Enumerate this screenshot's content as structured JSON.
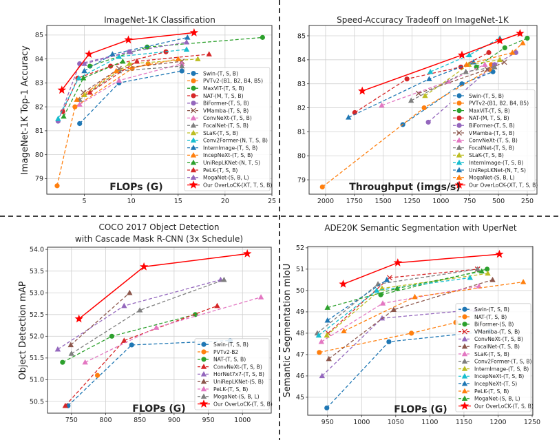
{
  "chart_data": [
    {
      "type": "line",
      "title": [
        "ImageNet-1K Classification"
      ],
      "xlabel": "FLOPs (G)",
      "ylabel": "ImageNet-1K Top-1 Accuracy",
      "xlim": [
        1.0,
        25.0
      ],
      "ylim": [
        78.35,
        85.4
      ],
      "x_reversed": false,
      "xticks": [
        5,
        10,
        15,
        20,
        25
      ],
      "yticks": [
        79,
        80,
        81,
        82,
        83,
        84,
        85
      ],
      "grid": true,
      "legend": "lower right",
      "series": [
        {
          "name": "Swin-(T, S, B)",
          "color": "#1f77b4",
          "marker": "circle",
          "x": [
            4.5,
            8.7,
            15.4
          ],
          "y": [
            81.3,
            83.0,
            83.5
          ]
        },
        {
          "name": "PVTv2-(B1, B2, B4, B5)",
          "color": "#ff7f0e",
          "marker": "circle",
          "x": [
            2.1,
            4.0,
            10.1,
            11.8
          ],
          "y": [
            78.7,
            82.0,
            83.6,
            83.8
          ]
        },
        {
          "name": "MaxViT-(T, S, B)",
          "color": "#2ca02c",
          "marker": "circle",
          "x": [
            5.6,
            11.7,
            24.0
          ],
          "y": [
            83.7,
            84.5,
            84.9
          ]
        },
        {
          "name": "NAT-(M, T, S, B)",
          "color": "#d62728",
          "marker": "circle",
          "x": [
            2.7,
            4.3,
            7.8,
            13.7
          ],
          "y": [
            81.8,
            83.2,
            83.7,
            84.3
          ]
        },
        {
          "name": "BiFormer-(T, S, B)",
          "color": "#9467bd",
          "marker": "circle",
          "x": [
            2.2,
            4.5,
            9.8
          ],
          "y": [
            81.4,
            83.8,
            84.3
          ]
        },
        {
          "name": "VMamba-(T, S, B)",
          "color": "#8c564b",
          "marker": "x",
          "x": [
            4.9,
            8.7,
            15.4
          ],
          "y": [
            82.6,
            83.6,
            83.9
          ]
        },
        {
          "name": "ConvNeXt-(T, S, B)",
          "color": "#e377c2",
          "marker": "triangle",
          "x": [
            4.5,
            8.7,
            15.4
          ],
          "y": [
            82.1,
            83.1,
            83.8
          ]
        },
        {
          "name": "FocalNet-(T, S, B)",
          "color": "#7f7f7f",
          "marker": "triangle",
          "x": [
            4.5,
            8.7,
            15.4
          ],
          "y": [
            82.3,
            83.5,
            83.7
          ]
        },
        {
          "name": "SLaK-(T, S, B)",
          "color": "#bcbd22",
          "marker": "triangle",
          "x": [
            5.0,
            9.8,
            17.1
          ],
          "y": [
            82.5,
            83.8,
            84.0
          ]
        },
        {
          "name": "Conv2Former-(N, T, S, B)",
          "color": "#17becf",
          "marker": "triangle",
          "x": [
            2.2,
            4.4,
            8.7,
            15.9
          ],
          "y": [
            81.5,
            83.2,
            84.1,
            84.4
          ]
        },
        {
          "name": "InternImage-(T, S, B)",
          "color": "#1f77b4",
          "marker": "triangle",
          "x": [
            5.0,
            8.0,
            16.0
          ],
          "y": [
            83.5,
            84.2,
            84.9
          ]
        },
        {
          "name": "IncepNeXt-(T, S, B)",
          "color": "#ff7f0e",
          "marker": "triangle",
          "x": [
            4.2,
            8.4,
            15.0
          ],
          "y": [
            82.3,
            83.5,
            84.0
          ]
        },
        {
          "name": "UniRepLKNet-(N, T, S)",
          "color": "#2ca02c",
          "marker": "triangle",
          "x": [
            2.8,
            4.9,
            9.1
          ],
          "y": [
            81.6,
            83.2,
            83.9
          ]
        },
        {
          "name": "PeLK-(T, S, B)",
          "color": "#d62728",
          "marker": "triangle",
          "x": [
            5.6,
            10.6,
            18.3
          ],
          "y": [
            82.6,
            83.9,
            84.2
          ]
        },
        {
          "name": "MogaNet-(S, B, L)",
          "color": "#9467bd",
          "marker": "triangle",
          "x": [
            5.0,
            9.9,
            15.9
          ],
          "y": [
            83.8,
            84.3,
            84.7
          ]
        },
        {
          "name": "Our OverLoCK-(XT, T, S, B)",
          "color": "#ff0000",
          "marker": "star",
          "solid": true,
          "x": [
            2.6,
            5.5,
            9.7,
            16.7
          ],
          "y": [
            82.7,
            84.2,
            84.8,
            85.1
          ]
        }
      ]
    },
    {
      "type": "line",
      "title": [
        "Speed-Accuracy Tradeoff on ImageNet-1K"
      ],
      "xlabel": "Throughput (imgs/s)",
      "ylabel": "",
      "xlim": [
        2143,
        166
      ],
      "ylim": [
        78.4,
        85.43
      ],
      "x_reversed": true,
      "xticks": [
        2000,
        1750,
        1500,
        1250,
        1000,
        750,
        500,
        250
      ],
      "yticks": [
        79,
        80,
        81,
        82,
        83,
        84,
        85
      ],
      "grid": true,
      "legend": "lower right",
      "series": [
        {
          "name": "Swin-(T, S, B)",
          "color": "#1f77b4",
          "marker": "circle",
          "x": [
            1330,
            817,
            548
          ],
          "y": [
            81.3,
            83.0,
            83.5
          ]
        },
        {
          "name": "PVTv2-(B1, B2, B4, B5)",
          "color": "#ff7f0e",
          "marker": "circle",
          "x": [
            2028,
            1145,
            578,
            562
          ],
          "y": [
            78.7,
            82.0,
            83.6,
            83.8
          ]
        },
        {
          "name": "MaxViT-(T, S, B)",
          "color": "#2ca02c",
          "marker": "circle",
          "x": [
            691,
            445,
            250
          ],
          "y": [
            83.7,
            84.5,
            84.9
          ]
        },
        {
          "name": "NAT-(M, T, S, B)",
          "color": "#d62728",
          "marker": "circle",
          "x": [
            1747,
            1294,
            826,
            584
          ],
          "y": [
            81.8,
            83.2,
            83.7,
            84.3
          ]
        },
        {
          "name": "BiFormer-(T, S, B)",
          "color": "#9467bd",
          "marker": "circle",
          "x": [
            1109,
            534,
            349
          ],
          "y": [
            81.4,
            83.8,
            84.3
          ]
        },
        {
          "name": "VMamba-(T, S, B)",
          "color": "#8c564b",
          "marker": "x",
          "x": [
            1194,
            598,
            449
          ],
          "y": [
            82.6,
            83.6,
            83.9
          ]
        },
        {
          "name": "ConvNeXt-(T, S, B)",
          "color": "#e377c2",
          "marker": "triangle",
          "x": [
            1513,
            936,
            618
          ],
          "y": [
            82.1,
            83.1,
            83.8
          ]
        },
        {
          "name": "FocalNet-(T, S, B)",
          "color": "#7f7f7f",
          "marker": "triangle",
          "x": [
            1258,
            783,
            534
          ],
          "y": [
            82.3,
            83.5,
            83.7
          ]
        },
        {
          "name": "SLaK-(T, S, B)",
          "color": "#bcbd22",
          "marker": "triangle",
          "x": [
            1137,
            757,
            488
          ],
          "y": [
            82.5,
            83.8,
            84.0
          ]
        },
        {
          "name": "InternImage-(T, S, B)",
          "color": "#17becf",
          "marker": "triangle",
          "x": [
            1091,
            753,
            488
          ],
          "y": [
            83.5,
            84.2,
            84.9
          ]
        },
        {
          "name": "UniRepLKNet-(N, T, S)",
          "color": "#1f77b4",
          "marker": "triangle",
          "x": [
            1801,
            1101,
            717
          ],
          "y": [
            81.6,
            83.2,
            83.9
          ]
        },
        {
          "name": "MogaNet-(S, B, L)",
          "color": "#ff7f0e",
          "marker": "triangle",
          "x": [
            777,
            379,
            289
          ],
          "y": [
            83.8,
            84.3,
            84.7
          ]
        },
        {
          "name": "Our OverLoCK-(XT, T, S, B)",
          "color": "#ff0000",
          "marker": "star",
          "solid": true,
          "x": [
            1682,
            817,
            488,
            313
          ],
          "y": [
            82.7,
            84.2,
            84.8,
            85.1
          ]
        }
      ]
    },
    {
      "type": "line",
      "title": [
        "COCO 2017 Object Detection",
        "with Cascade Mask R-CNN (3x Schedule)"
      ],
      "xlabel": "FLOPs (G)",
      "ylabel": "Object Detection mAP",
      "xlim": [
        715,
        1042
      ],
      "ylim": [
        50.23,
        54.05
      ],
      "x_reversed": false,
      "xticks": [
        750,
        800,
        850,
        900,
        950,
        1000
      ],
      "yticks": [
        50.5,
        51.0,
        51.5,
        52.0,
        52.5,
        53.0,
        53.5,
        54.0
      ],
      "grid": true,
      "legend": "lower right",
      "series": [
        {
          "name": "Swin-(T, S, B)",
          "color": "#1f77b4",
          "marker": "circle",
          "x": [
            745,
            838,
            982
          ],
          "y": [
            50.4,
            51.8,
            51.9
          ]
        },
        {
          "name": "PVTv2-B2",
          "color": "#ff7f0e",
          "marker": "circle",
          "x": [
            788
          ],
          "y": [
            51.1
          ]
        },
        {
          "name": "NAT-(T, S, B)",
          "color": "#2ca02c",
          "marker": "circle",
          "x": [
            737,
            809,
            931
          ],
          "y": [
            51.4,
            52.0,
            52.5
          ]
        },
        {
          "name": "ConvNeXt-(T, S, B)",
          "color": "#d62728",
          "marker": "triangle",
          "x": [
            741,
            827,
            963
          ],
          "y": [
            50.4,
            51.9,
            52.7
          ]
        },
        {
          "name": "HorNet7x7-(T, S, B)",
          "color": "#9467bd",
          "marker": "triangle",
          "x": [
            730,
            827,
            968
          ],
          "y": [
            51.7,
            52.7,
            53.3
          ]
        },
        {
          "name": "UniRepLKNet-(S, B)",
          "color": "#8c564b",
          "marker": "triangle",
          "x": [
            749,
            835
          ],
          "y": [
            51.8,
            53.0
          ]
        },
        {
          "name": "PeLK-(T, S, B)",
          "color": "#e377c2",
          "marker": "triangle",
          "x": [
            770,
            874,
            1027
          ],
          "y": [
            51.4,
            52.2,
            52.9
          ]
        },
        {
          "name": "MogaNet-(S, B, L)",
          "color": "#7f7f7f",
          "marker": "triangle",
          "x": [
            750,
            850,
            973
          ],
          "y": [
            51.6,
            52.6,
            53.3
          ]
        },
        {
          "name": "Our OverLoCK-(T, S, B)",
          "color": "#ff0000",
          "marker": "star",
          "solid": true,
          "x": [
            761,
            856,
            1007
          ],
          "y": [
            52.4,
            53.6,
            53.9
          ]
        }
      ]
    },
    {
      "type": "line",
      "title": [
        "ADE20K Semantic Segmentation with UperNet"
      ],
      "xlabel": "FLOPs (G)",
      "ylabel": "Semantic Segmentation mIoU",
      "xlim": [
        921,
        1251
      ],
      "ylim": [
        44.16,
        52.06
      ],
      "x_reversed": false,
      "xticks": [
        950,
        1000,
        1050,
        1100,
        1150,
        1200,
        1250
      ],
      "yticks": [
        45,
        46,
        47,
        48,
        49,
        50,
        51,
        52
      ],
      "grid": true,
      "legend": "lower right",
      "series": [
        {
          "name": "Swin-(T, S, B)",
          "color": "#1f77b4",
          "marker": "circle",
          "x": [
            949,
            1040,
            1188
          ],
          "y": [
            44.5,
            47.6,
            48.1
          ]
        },
        {
          "name": "NAT-(T, S, B)",
          "color": "#ff7f0e",
          "marker": "circle",
          "x": [
            938,
            1073,
            1138
          ],
          "y": [
            47.1,
            48.0,
            48.5
          ]
        },
        {
          "name": "BiFormer-(S, B)",
          "color": "#2ca02c",
          "marker": "circle",
          "x": [
            1028,
            1184
          ],
          "y": [
            49.8,
            51.0
          ]
        },
        {
          "name": "VMamba-(T, S, B)",
          "color": "#d62728",
          "marker": "x",
          "x": [
            951,
            1041,
            1170
          ],
          "y": [
            48.0,
            50.6,
            51.0
          ]
        },
        {
          "name": "ConvNeXt-(T, S, B)",
          "color": "#9467bd",
          "marker": "triangle",
          "x": [
            942,
            1030,
            1167
          ],
          "y": [
            46.0,
            48.7,
            49.1
          ]
        },
        {
          "name": "FocalNet-(T, S, B)",
          "color": "#8c564b",
          "marker": "triangle",
          "x": [
            952,
            1047,
            1192
          ],
          "y": [
            46.8,
            49.1,
            50.5
          ]
        },
        {
          "name": "SLaK-(T, S, B)",
          "color": "#e377c2",
          "marker": "triangle",
          "x": [
            941,
            1031,
            1172
          ],
          "y": [
            47.6,
            49.4,
            50.2
          ]
        },
        {
          "name": "Conv2Former-(T, S, B)",
          "color": "#7f7f7f",
          "marker": "triangle",
          "x": [
            935,
            1024,
            1170
          ],
          "y": [
            48.0,
            50.3,
            51.0
          ]
        },
        {
          "name": "InternImage-(T, S, B)",
          "color": "#bcbd22",
          "marker": "triangle",
          "x": [
            949,
            1030,
            1185
          ],
          "y": [
            47.9,
            50.1,
            50.8
          ]
        },
        {
          "name": "IncepNeXt-(T, S, B)",
          "color": "#17becf",
          "marker": "triangle",
          "x": [
            937,
            1022,
            1159
          ],
          "y": [
            47.9,
            50.0,
            50.6
          ]
        },
        {
          "name": "IncepNeXt-(T, S)",
          "color": "#1f77b4",
          "marker": "triangle",
          "x": [
            950,
            1037
          ],
          "y": [
            48.6,
            50.5
          ]
        },
        {
          "name": "PeLK-(T, S, B)",
          "color": "#ff7f0e",
          "marker": "triangle",
          "x": [
            974,
            1078,
            1237
          ],
          "y": [
            48.1,
            49.7,
            50.4
          ]
        },
        {
          "name": "MogaNet-(S, B, L)",
          "color": "#2ca02c",
          "marker": "triangle",
          "x": [
            950,
            1052,
            1176
          ],
          "y": [
            49.2,
            50.1,
            50.9
          ]
        },
        {
          "name": "Our OverLoCK-(T, S, B)",
          "color": "#ff0000",
          "marker": "star",
          "solid": true,
          "x": [
            973,
            1053,
            1202
          ],
          "y": [
            50.3,
            51.3,
            51.7
          ]
        }
      ]
    }
  ]
}
